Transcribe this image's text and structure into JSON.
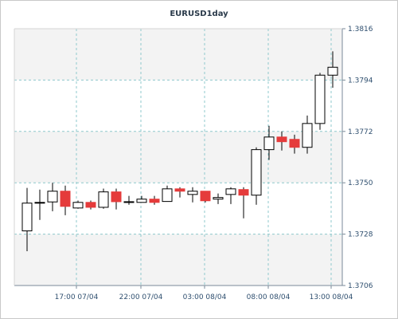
{
  "chart_data": {
    "type": "candlestick",
    "title": "EURUSD1day",
    "y_ticks": [
      "1.3816",
      "1.3794",
      "1.3772",
      "1.3750",
      "1.3728",
      "1.3706"
    ],
    "ylim": [
      1.3706,
      1.3816
    ],
    "x_ticks": [
      "17:00 07/04",
      "22:00 07/04",
      "03:00 08/04",
      "08:00 08/04",
      "13:00 08/04"
    ],
    "grid": true,
    "colors": {
      "bull_fill": "#ffffff",
      "bear_fill": "#e53b3b",
      "wick": "#000000",
      "grid": "#8fc8cc",
      "plot_band": "#f3f3f3",
      "axis_text": "#2f4f6f"
    },
    "candles": [
      {
        "open": 1.37294,
        "close": 1.37413,
        "high": 1.37478,
        "low": 1.37207
      },
      {
        "open": 1.37413,
        "close": 1.37416,
        "high": 1.37471,
        "low": 1.37341
      },
      {
        "open": 1.37418,
        "close": 1.37464,
        "high": 1.375,
        "low": 1.37378
      },
      {
        "open": 1.37464,
        "close": 1.37399,
        "high": 1.37488,
        "low": 1.37361
      },
      {
        "open": 1.37392,
        "close": 1.37416,
        "high": 1.37424,
        "low": 1.37389
      },
      {
        "open": 1.37416,
        "close": 1.37395,
        "high": 1.37424,
        "low": 1.37386
      },
      {
        "open": 1.37395,
        "close": 1.37461,
        "high": 1.37475,
        "low": 1.37389
      },
      {
        "open": 1.37461,
        "close": 1.37419,
        "high": 1.37475,
        "low": 1.37386
      },
      {
        "open": 1.37416,
        "close": 1.37419,
        "high": 1.37444,
        "low": 1.37406
      },
      {
        "open": 1.37416,
        "close": 1.3743,
        "high": 1.37444,
        "low": 1.37416
      },
      {
        "open": 1.3743,
        "close": 1.37416,
        "high": 1.37444,
        "low": 1.37406
      },
      {
        "open": 1.3742,
        "close": 1.37474,
        "high": 1.37488,
        "low": 1.3742
      },
      {
        "open": 1.37474,
        "close": 1.37464,
        "high": 1.37481,
        "low": 1.37437
      },
      {
        "open": 1.3745,
        "close": 1.37464,
        "high": 1.37481,
        "low": 1.37416
      },
      {
        "open": 1.37464,
        "close": 1.37423,
        "high": 1.37464,
        "low": 1.37416
      },
      {
        "open": 1.3743,
        "close": 1.37437,
        "high": 1.37454,
        "low": 1.37409
      },
      {
        "open": 1.3745,
        "close": 1.37474,
        "high": 1.37481,
        "low": 1.37409
      },
      {
        "open": 1.37471,
        "close": 1.37447,
        "high": 1.37481,
        "low": 1.37348
      },
      {
        "open": 1.37447,
        "close": 1.37642,
        "high": 1.37652,
        "low": 1.37406
      },
      {
        "open": 1.37642,
        "close": 1.37696,
        "high": 1.37744,
        "low": 1.37598
      },
      {
        "open": 1.37696,
        "close": 1.37676,
        "high": 1.3772,
        "low": 1.37638
      },
      {
        "open": 1.37686,
        "close": 1.37652,
        "high": 1.37706,
        "low": 1.37625
      },
      {
        "open": 1.37652,
        "close": 1.37754,
        "high": 1.37788,
        "low": 1.37625
      },
      {
        "open": 1.37754,
        "close": 1.37961,
        "high": 1.37971,
        "low": 1.37727
      },
      {
        "open": 1.37961,
        "close": 1.37995,
        "high": 1.38063,
        "low": 1.37907
      }
    ]
  }
}
